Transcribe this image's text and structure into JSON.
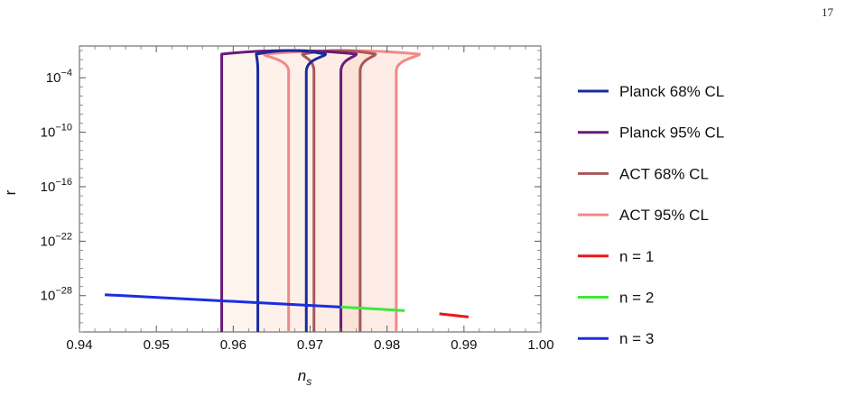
{
  "page": {
    "number": "17"
  },
  "chart_data": {
    "type": "line",
    "xlabel": "n",
    "xlabel_sub": "s",
    "ylabel": "r",
    "xlim": [
      0.94,
      1.0
    ],
    "ylim_log10": [
      -32,
      -0.5
    ],
    "y_scale": "log",
    "x_ticks": [
      "0.94",
      "0.95",
      "0.96",
      "0.97",
      "0.98",
      "0.99",
      "1.00"
    ],
    "y_ticks": [
      {
        "exp": -4,
        "base": "10",
        "sup": "−4"
      },
      {
        "exp": -10,
        "base": "10",
        "sup": "−10"
      },
      {
        "exp": -16,
        "base": "10",
        "sup": "−16"
      },
      {
        "exp": -22,
        "base": "10",
        "sup": "−22"
      },
      {
        "exp": -28,
        "base": "10",
        "sup": "−28"
      }
    ],
    "legend_position": "right",
    "legend": [
      {
        "label": "Planck 68% CL",
        "color": "#1a2a9e"
      },
      {
        "label": "Planck 95% CL",
        "color": "#6b1a7a"
      },
      {
        "label": "ACT 68% CL",
        "color": "#a8565a"
      },
      {
        "label": "ACT 95% CL",
        "color": "#f08a8a"
      },
      {
        "label": "n = 1",
        "color": "#e8181a"
      },
      {
        "label": "n = 2",
        "color": "#3ee83a"
      },
      {
        "label": "n = 3",
        "color": "#1a2ee0"
      }
    ],
    "contours": [
      {
        "name": "ACT 95% CL",
        "color": "#f08a8a",
        "fill": "#fbe6dc",
        "left_ns": 0.9672,
        "right_ns": 0.9812,
        "top_left_ns": 0.964,
        "top_right_ns": 0.9842
      },
      {
        "name": "ACT 68% CL",
        "color": "#a8565a",
        "fill": "#fbe0d2",
        "left_ns": 0.9705,
        "right_ns": 0.9765,
        "top_left_ns": 0.969,
        "top_right_ns": 0.9785
      },
      {
        "name": "Planck 95% CL",
        "color": "#6b1a7a",
        "fill": "#fdf0e8",
        "left_ns": 0.9585,
        "right_ns": 0.974,
        "top_left_ns": 0.9585,
        "top_right_ns": 0.976
      },
      {
        "name": "Planck 68% CL",
        "color": "#1a2a9e",
        "fill": "#fdf0e8",
        "left_ns": 0.9632,
        "right_ns": 0.9695,
        "top_left_ns": 0.963,
        "top_right_ns": 0.972
      }
    ],
    "contour_top_log10r": -1.5,
    "series": [
      {
        "name": "n = 3",
        "color": "#1a2ee0",
        "points": [
          [
            0.9433,
            -27.9
          ],
          [
            0.974,
            -29.25
          ]
        ]
      },
      {
        "name": "n = 2",
        "color": "#3ee83a",
        "points": [
          [
            0.974,
            -29.25
          ],
          [
            0.9823,
            -29.65
          ]
        ]
      },
      {
        "name": "n = 1",
        "color": "#e8181a",
        "points": [
          [
            0.9868,
            -30.0
          ],
          [
            0.9906,
            -30.35
          ]
        ]
      }
    ]
  }
}
